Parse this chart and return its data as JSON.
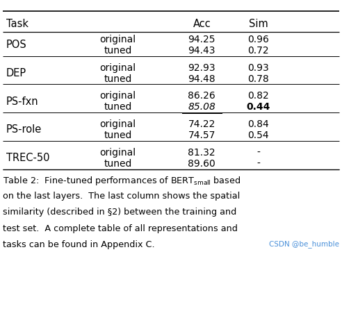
{
  "watermark": "CSDN @be_humble",
  "col_headers": [
    "Task",
    "",
    "Acc",
    "Sim"
  ],
  "rows": [
    {
      "task": "POS",
      "type1": "original",
      "acc1": "94.25",
      "sim1": "0.96",
      "type2": "tuned",
      "acc2": "94.43",
      "sim2": "0.72",
      "acc2_underline": false,
      "acc2_italic": false,
      "sim2_bold": false
    },
    {
      "task": "DEP",
      "type1": "original",
      "acc1": "92.93",
      "sim1": "0.93",
      "type2": "tuned",
      "acc2": "94.48",
      "sim2": "0.78",
      "acc2_underline": false,
      "acc2_italic": false,
      "sim2_bold": false
    },
    {
      "task": "PS-fxn",
      "type1": "original",
      "acc1": "86.26",
      "sim1": "0.82",
      "type2": "tuned",
      "acc2": "85.08",
      "sim2": "0.44",
      "acc2_underline": true,
      "acc2_italic": true,
      "sim2_bold": true
    },
    {
      "task": "PS-role",
      "type1": "original",
      "acc1": "74.22",
      "sim1": "0.84",
      "type2": "tuned",
      "acc2": "74.57",
      "sim2": "0.54",
      "acc2_underline": false,
      "acc2_italic": false,
      "sim2_bold": false
    },
    {
      "task": "TREC-50",
      "type1": "original",
      "acc1": "81.32",
      "sim1": "-",
      "type2": "tuned",
      "acc2": "89.60",
      "sim2": "-",
      "acc2_underline": false,
      "acc2_italic": false,
      "sim2_bold": false
    }
  ],
  "bg_color": "#ffffff",
  "text_color": "#000000",
  "watermark_color": "#4a90d9"
}
